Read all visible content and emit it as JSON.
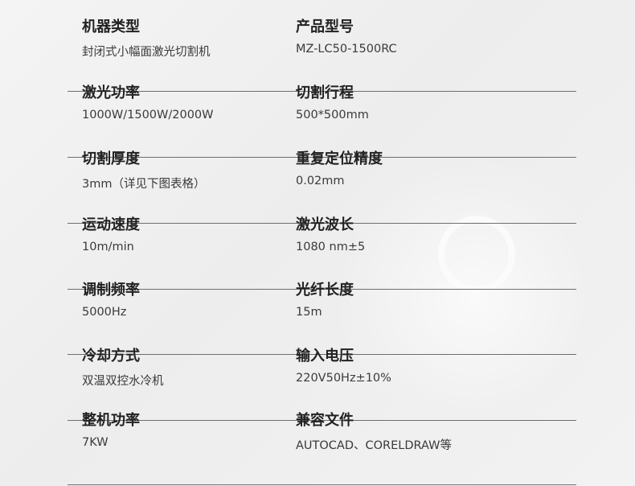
{
  "specs": [
    {
      "left": {
        "label": "机器类型",
        "value": "封闭式小幅面激光切割机"
      },
      "right": {
        "label": "产品型号",
        "value": "MZ-LC50-1500RC"
      }
    },
    {
      "left": {
        "label": "激光功率",
        "value": "1000W/1500W/2000W"
      },
      "right": {
        "label": "切割行程",
        "value": "500*500mm"
      }
    },
    {
      "left": {
        "label": "切割厚度",
        "value": "3mm（详见下图表格）"
      },
      "right": {
        "label": "重复定位精度",
        "value": "0.02mm"
      }
    },
    {
      "left": {
        "label": "运动速度",
        "value": "10m/min"
      },
      "right": {
        "label": "激光波长",
        "value": "1080 nm±5"
      }
    },
    {
      "left": {
        "label": "调制频率",
        "value": "5000Hz"
      },
      "right": {
        "label": "光纤长度",
        "value": "15m"
      }
    },
    {
      "left": {
        "label": "冷却方式",
        "value": "双温双控水冷机"
      },
      "right": {
        "label": "输入电压",
        "value": "220V50Hz±10%"
      }
    },
    {
      "left": {
        "label": "整机功率",
        "value": "7KW"
      },
      "right": {
        "label": "兼容文件",
        "value": "AUTOCAD、CORELDRAW等"
      }
    }
  ]
}
